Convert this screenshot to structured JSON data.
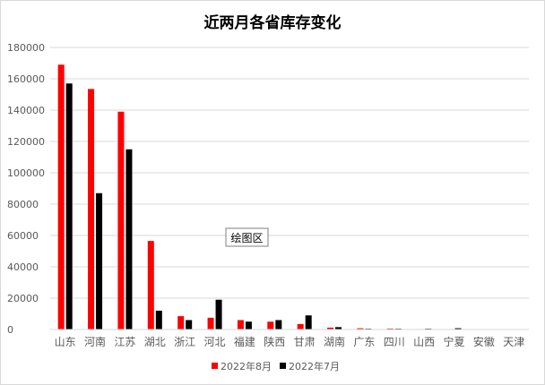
{
  "chart_data": {
    "type": "bar",
    "title": "近两月各省库存变化",
    "categories": [
      "山东",
      "河南",
      "江苏",
      "湖北",
      "浙江",
      "河北",
      "福建",
      "陕西",
      "甘肃",
      "湖南",
      "广东",
      "四川",
      "山西",
      "宁夏",
      "安徽",
      "天津"
    ],
    "series": [
      {
        "name": "2022年8月",
        "color": "#ff0000",
        "values": [
          169000,
          153500,
          139000,
          56500,
          8500,
          7500,
          6000,
          5000,
          3500,
          1200,
          800,
          600,
          300,
          0,
          0,
          0
        ]
      },
      {
        "name": "2022年7月",
        "color": "#000000",
        "values": [
          157000,
          87000,
          115000,
          12000,
          6000,
          19000,
          5000,
          6000,
          9000,
          1500,
          500,
          500,
          500,
          800,
          0,
          0
        ]
      }
    ],
    "ylim": [
      0,
      180000
    ],
    "yticks": [
      0,
      20000,
      40000,
      60000,
      80000,
      100000,
      120000,
      140000,
      160000,
      180000
    ],
    "ytick_labels": [
      "0",
      "20000",
      "40000",
      "60000",
      "80000",
      "100000",
      "120000",
      "140000",
      "160000",
      "180000"
    ],
    "xlabel": "",
    "ylabel": "",
    "grid": true,
    "legend_position": "bottom",
    "annotation": "绘图区"
  }
}
